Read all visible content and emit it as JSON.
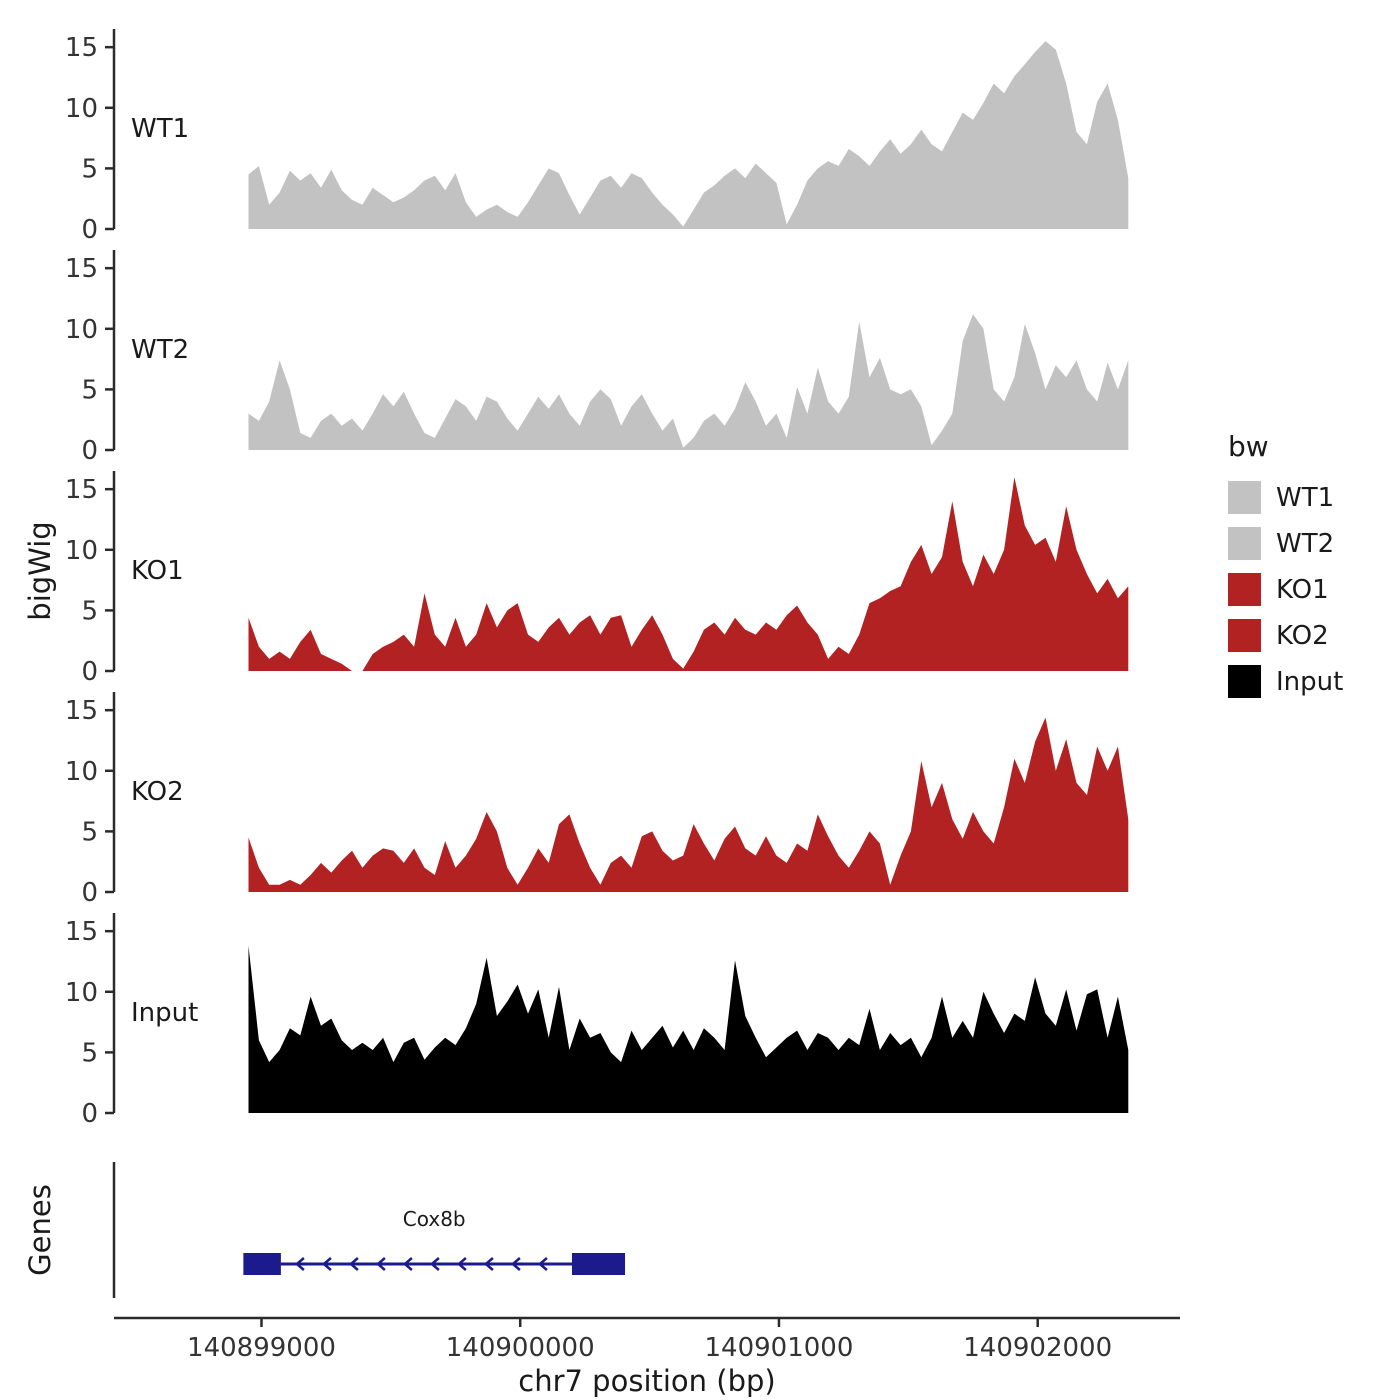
{
  "chart_data": {
    "type": "area",
    "title": "",
    "x_start": 140898950,
    "x_step": 40,
    "x_axis": {
      "label": "chr7 position (bp)",
      "ticks": [
        140899000,
        140900000,
        140901000,
        140902000
      ],
      "tick_labels": [
        "140899000",
        "140900000",
        "140901000",
        "140902000"
      ],
      "range": [
        140898430,
        140902550
      ]
    },
    "y_axis": {
      "label": "bigWig",
      "ticks": [
        0,
        5,
        10,
        15
      ],
      "range": [
        0,
        16.5
      ]
    },
    "series": [
      {
        "name": "WT1",
        "color": "#C2C2C2",
        "values": [
          4.5,
          5.2,
          2.0,
          3.0,
          4.8,
          4.0,
          4.6,
          3.4,
          4.9,
          3.2,
          2.4,
          2.0,
          3.4,
          2.8,
          2.2,
          2.6,
          3.2,
          4.0,
          4.4,
          3.2,
          4.6,
          2.2,
          1.0,
          1.6,
          2.0,
          1.4,
          1.0,
          2.2,
          3.6,
          5.0,
          4.6,
          2.8,
          1.2,
          2.6,
          4.0,
          4.4,
          3.4,
          4.6,
          4.2,
          3.0,
          2.0,
          1.2,
          0.2,
          1.6,
          3.0,
          3.6,
          4.4,
          5.0,
          4.2,
          5.4,
          4.6,
          3.8,
          0.4,
          2.0,
          4.0,
          5.0,
          5.6,
          5.2,
          6.6,
          6.0,
          5.2,
          6.4,
          7.4,
          6.2,
          7.0,
          8.2,
          7.0,
          6.4,
          8.0,
          9.6,
          9.0,
          10.4,
          12.0,
          11.2,
          12.6,
          13.6,
          14.6,
          15.5,
          14.8,
          12.0,
          8.0,
          7.0,
          10.5,
          12.0,
          9.0,
          4.2
        ]
      },
      {
        "name": "WT2",
        "color": "#C2C2C2",
        "values": [
          3.0,
          2.4,
          4.0,
          7.4,
          5.0,
          1.4,
          1.0,
          2.4,
          3.0,
          2.0,
          2.6,
          1.6,
          3.0,
          4.6,
          3.6,
          4.8,
          3.0,
          1.4,
          1.0,
          2.6,
          4.2,
          3.6,
          2.4,
          4.4,
          4.0,
          2.6,
          1.6,
          3.0,
          4.4,
          3.4,
          4.6,
          3.0,
          2.0,
          4.0,
          5.0,
          4.2,
          2.0,
          3.6,
          4.6,
          3.0,
          1.6,
          2.6,
          0.2,
          1.0,
          2.4,
          3.0,
          2.0,
          3.4,
          5.6,
          4.0,
          2.0,
          3.0,
          1.0,
          5.2,
          3.0,
          6.8,
          4.0,
          3.0,
          4.4,
          10.6,
          6.0,
          7.6,
          5.0,
          4.6,
          5.0,
          3.6,
          0.4,
          1.6,
          3.0,
          9.0,
          11.2,
          10.0,
          5.0,
          4.0,
          6.0,
          10.4,
          8.0,
          5.0,
          7.0,
          6.0,
          7.4,
          5.0,
          4.0,
          7.2,
          5.0,
          7.4
        ]
      },
      {
        "name": "KO1",
        "color": "#B22222",
        "values": [
          4.4,
          2.0,
          1.0,
          1.6,
          1.0,
          2.4,
          3.4,
          1.4,
          1.0,
          0.6,
          0.0,
          0.0,
          1.4,
          2.0,
          2.4,
          3.0,
          2.0,
          6.4,
          3.0,
          2.0,
          4.4,
          2.0,
          3.0,
          5.6,
          3.6,
          5.0,
          5.6,
          3.0,
          2.4,
          3.6,
          4.4,
          3.0,
          4.0,
          4.6,
          3.0,
          4.4,
          4.6,
          2.0,
          3.4,
          4.6,
          3.0,
          1.0,
          0.2,
          1.6,
          3.4,
          4.0,
          3.0,
          4.4,
          3.4,
          3.0,
          4.0,
          3.4,
          4.6,
          5.4,
          4.0,
          3.0,
          1.0,
          2.0,
          1.4,
          3.0,
          5.6,
          6.0,
          6.6,
          7.0,
          9.0,
          10.4,
          8.0,
          9.4,
          14.0,
          9.0,
          7.0,
          9.6,
          8.0,
          10.0,
          16.0,
          12.0,
          10.4,
          11.0,
          9.0,
          13.6,
          10.0,
          8.0,
          6.4,
          7.6,
          6.0,
          7.0
        ]
      },
      {
        "name": "KO2",
        "color": "#B22222",
        "values": [
          4.5,
          2.0,
          0.6,
          0.6,
          1.0,
          0.6,
          1.4,
          2.4,
          1.6,
          2.6,
          3.4,
          2.0,
          3.0,
          3.6,
          3.4,
          2.4,
          3.6,
          2.0,
          1.4,
          4.2,
          2.0,
          3.0,
          4.4,
          6.6,
          5.0,
          2.0,
          0.6,
          2.0,
          3.6,
          2.4,
          5.6,
          6.4,
          4.0,
          2.0,
          0.6,
          2.4,
          3.0,
          2.0,
          4.6,
          5.0,
          3.4,
          2.6,
          3.0,
          5.6,
          4.0,
          2.6,
          4.4,
          5.4,
          3.6,
          3.0,
          4.6,
          3.0,
          2.4,
          4.0,
          3.4,
          6.4,
          4.6,
          3.0,
          2.0,
          3.4,
          5.0,
          4.0,
          0.6,
          3.0,
          5.0,
          10.8,
          7.0,
          9.0,
          6.0,
          4.4,
          6.6,
          5.0,
          4.0,
          7.0,
          11.0,
          9.0,
          12.4,
          14.4,
          10.0,
          12.6,
          9.0,
          8.0,
          12.0,
          10.0,
          12.0,
          6.0
        ]
      },
      {
        "name": "Input",
        "color": "#000000",
        "values": [
          13.8,
          6.0,
          4.2,
          5.2,
          7.0,
          6.4,
          9.6,
          7.2,
          7.8,
          6.0,
          5.2,
          5.8,
          5.2,
          6.2,
          4.2,
          5.8,
          6.2,
          4.4,
          5.4,
          6.2,
          5.6,
          7.0,
          9.0,
          12.8,
          8.0,
          9.2,
          10.6,
          8.2,
          10.2,
          6.2,
          10.4,
          5.2,
          7.8,
          6.2,
          6.6,
          5.0,
          4.2,
          6.8,
          5.2,
          6.2,
          7.2,
          5.4,
          6.8,
          5.2,
          7.0,
          6.2,
          5.2,
          12.6,
          8.0,
          6.2,
          4.6,
          5.4,
          6.2,
          6.8,
          5.2,
          6.6,
          6.2,
          5.2,
          6.2,
          5.6,
          8.6,
          5.2,
          6.6,
          5.6,
          6.2,
          4.6,
          6.2,
          9.6,
          6.2,
          7.6,
          6.2,
          10.0,
          8.2,
          6.6,
          8.2,
          7.6,
          11.2,
          8.2,
          7.2,
          10.2,
          6.8,
          9.8,
          10.2,
          6.2,
          9.6,
          5.2
        ]
      }
    ],
    "genes_panel": {
      "label": "Genes",
      "gene": {
        "name": "Cox8b",
        "strand": "-",
        "start": 140898930,
        "end": 140900405,
        "exon_left": [
          140898930,
          140899075
        ],
        "exon_right": [
          140900200,
          140900405
        ],
        "color": "#1B1B8E"
      }
    },
    "legend": {
      "title": "bw",
      "items": [
        {
          "label": "WT1",
          "color": "#C2C2C2"
        },
        {
          "label": "WT2",
          "color": "#C2C2C2"
        },
        {
          "label": "KO1",
          "color": "#B22222"
        },
        {
          "label": "KO2",
          "color": "#B22222"
        },
        {
          "label": "Input",
          "color": "#000000"
        }
      ]
    }
  }
}
